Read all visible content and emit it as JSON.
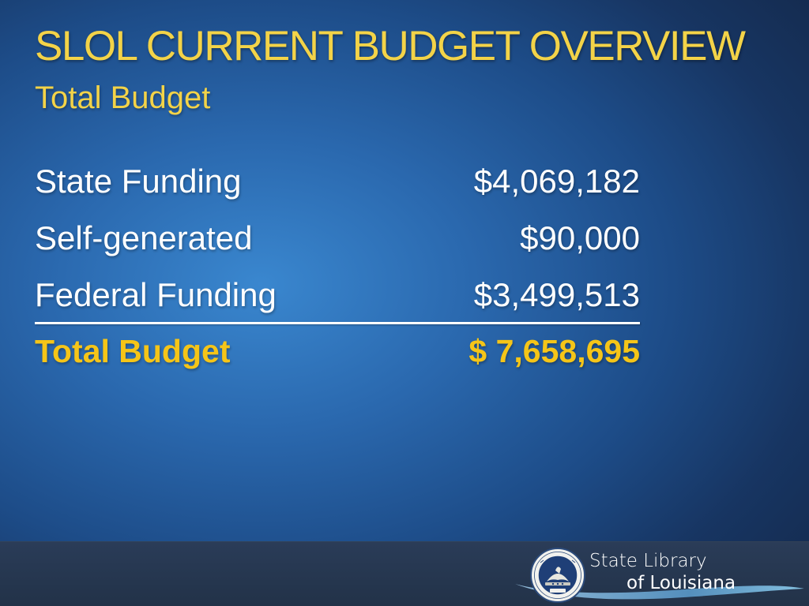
{
  "slide": {
    "title": "SLOL CURRENT BUDGET OVERVIEW",
    "subtitle": "Total Budget",
    "title_color": "#f3d348",
    "total_color": "#f5c518"
  },
  "budget": {
    "rows": [
      {
        "label": "State Funding",
        "amount": "$4,069,182"
      },
      {
        "label": "Self-generated",
        "amount": "$90,000"
      },
      {
        "label": "Federal Funding",
        "amount": "$3,499,513"
      }
    ],
    "total": {
      "label": "Total Budget",
      "amount": "$ 7,658,695"
    }
  },
  "logo": {
    "line1": "State Library",
    "line2": "of Louisiana",
    "seal_icon": "louisiana-state-seal-icon",
    "seal_text_top": "STATE OF LOUISIANA",
    "seal_text_bottom": "STATE LIBRARY OF LOUISIANA",
    "seal_motto": "CONFIDENCE"
  }
}
